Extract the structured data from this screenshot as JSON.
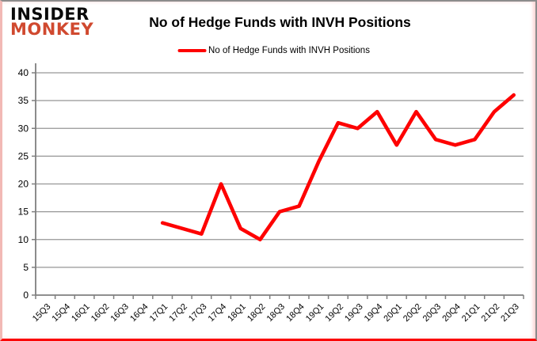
{
  "header": {
    "logo_line1": "INSIDER",
    "logo_line2": "MONKEY"
  },
  "colors": {
    "logo_red": "#d0492f",
    "line_red": "#fe0000",
    "axis_gray": "#7f7f7f",
    "grid_gray": "#969696"
  },
  "chart_data": {
    "type": "line",
    "title": "No of Hedge Funds with INVH Positions",
    "xlabel": "",
    "ylabel": "",
    "ylim": [
      0,
      40
    ],
    "ytick_step": 5,
    "grid": true,
    "legend_position": "top",
    "categories": [
      "15Q3",
      "15Q4",
      "16Q1",
      "16Q2",
      "16Q3",
      "16Q4",
      "17Q1",
      "17Q2",
      "17Q3",
      "17Q4",
      "18Q1",
      "18Q2",
      "18Q3",
      "18Q4",
      "19Q1",
      "19Q2",
      "19Q3",
      "19Q4",
      "20Q1",
      "20Q2",
      "20Q3",
      "20Q4",
      "21Q1",
      "21Q2",
      "21Q3"
    ],
    "series": [
      {
        "name": "No of Hedge Funds with INVH Positions",
        "color": "#fe0000",
        "values": [
          null,
          null,
          null,
          null,
          null,
          null,
          13,
          12,
          11,
          20,
          12,
          10,
          15,
          16,
          24,
          31,
          30,
          33,
          27,
          33,
          28,
          27,
          28,
          33,
          36
        ]
      }
    ]
  }
}
